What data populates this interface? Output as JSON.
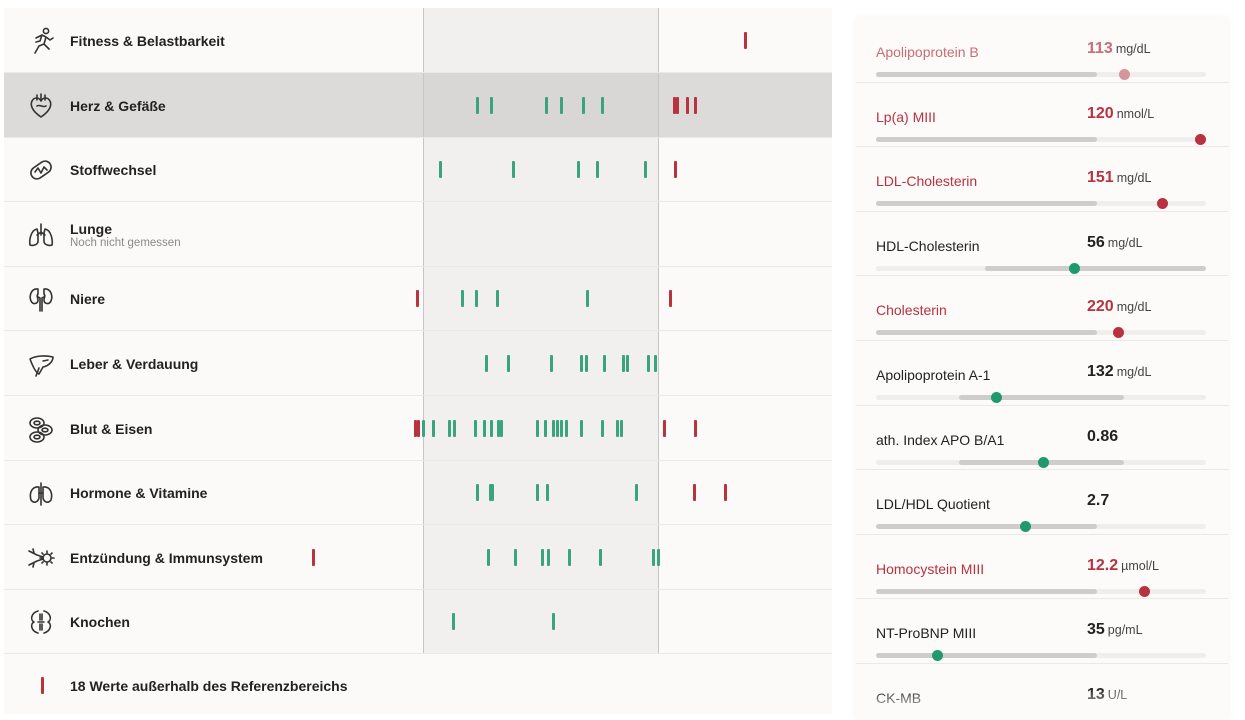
{
  "categories": [
    {
      "label": "Fitness & Belastbarkeit",
      "icon": "runner-icon",
      "marks": [
        {
          "x": 740,
          "s": "r"
        }
      ]
    },
    {
      "label": "Herz & Gefäße",
      "icon": "heart-icon",
      "selected": true,
      "marks": [
        {
          "x": 472,
          "s": "g"
        },
        {
          "x": 486,
          "s": "g"
        },
        {
          "x": 541,
          "s": "g"
        },
        {
          "x": 556,
          "s": "g"
        },
        {
          "x": 578,
          "s": "g"
        },
        {
          "x": 597,
          "s": "g"
        },
        {
          "x": 669,
          "s": "r"
        },
        {
          "x": 672,
          "s": "r"
        },
        {
          "x": 682,
          "s": "r"
        },
        {
          "x": 690,
          "s": "r"
        }
      ]
    },
    {
      "label": "Stoffwechsel",
      "icon": "mitochondria-icon",
      "marks": [
        {
          "x": 435,
          "s": "g"
        },
        {
          "x": 508,
          "s": "g"
        },
        {
          "x": 573,
          "s": "g"
        },
        {
          "x": 592,
          "s": "g"
        },
        {
          "x": 640,
          "s": "g"
        },
        {
          "x": 670,
          "s": "r"
        }
      ]
    },
    {
      "label": "Lunge",
      "icon": "lungs-icon",
      "sub": "Noch nicht gemessen",
      "marks": []
    },
    {
      "label": "Niere",
      "icon": "kidney-icon",
      "marks": [
        {
          "x": 412,
          "s": "r"
        },
        {
          "x": 457,
          "s": "g"
        },
        {
          "x": 471,
          "s": "g"
        },
        {
          "x": 492,
          "s": "g"
        },
        {
          "x": 582,
          "s": "g"
        },
        {
          "x": 665,
          "s": "r"
        }
      ]
    },
    {
      "label": "Leber & Verdauung",
      "icon": "liver-icon",
      "marks": [
        {
          "x": 481,
          "s": "g"
        },
        {
          "x": 503,
          "s": "g"
        },
        {
          "x": 546,
          "s": "g"
        },
        {
          "x": 576,
          "s": "g"
        },
        {
          "x": 581,
          "s": "g"
        },
        {
          "x": 599,
          "s": "g"
        },
        {
          "x": 618,
          "s": "g"
        },
        {
          "x": 622,
          "s": "g"
        },
        {
          "x": 643,
          "s": "g"
        },
        {
          "x": 650,
          "s": "g"
        }
      ]
    },
    {
      "label": "Blut & Eisen",
      "icon": "blood-cells-icon",
      "marks": [
        {
          "x": 410,
          "s": "r"
        },
        {
          "x": 413,
          "s": "r"
        },
        {
          "x": 418,
          "s": "g"
        },
        {
          "x": 428,
          "s": "g"
        },
        {
          "x": 444,
          "s": "g"
        },
        {
          "x": 449,
          "s": "g"
        },
        {
          "x": 470,
          "s": "g"
        },
        {
          "x": 479,
          "s": "g"
        },
        {
          "x": 486,
          "s": "g"
        },
        {
          "x": 493,
          "s": "g"
        },
        {
          "x": 496,
          "s": "g"
        },
        {
          "x": 532,
          "s": "g"
        },
        {
          "x": 540,
          "s": "g"
        },
        {
          "x": 548,
          "s": "g"
        },
        {
          "x": 552,
          "s": "g"
        },
        {
          "x": 556,
          "s": "g"
        },
        {
          "x": 561,
          "s": "g"
        },
        {
          "x": 576,
          "s": "g"
        },
        {
          "x": 597,
          "s": "g"
        },
        {
          "x": 612,
          "s": "g"
        },
        {
          "x": 616,
          "s": "g"
        },
        {
          "x": 659,
          "s": "r"
        },
        {
          "x": 690,
          "s": "r"
        }
      ]
    },
    {
      "label": "Hormone & Vitamine",
      "icon": "thyroid-icon",
      "marks": [
        {
          "x": 472,
          "s": "g"
        },
        {
          "x": 485,
          "s": "g"
        },
        {
          "x": 487,
          "s": "g"
        },
        {
          "x": 532,
          "s": "g"
        },
        {
          "x": 542,
          "s": "g"
        },
        {
          "x": 631,
          "s": "g"
        },
        {
          "x": 689,
          "s": "r"
        },
        {
          "x": 720,
          "s": "r"
        }
      ]
    },
    {
      "label": "Entzündung & Immunsystem",
      "icon": "immune-icon",
      "marks": [
        {
          "x": 308,
          "s": "r"
        },
        {
          "x": 483,
          "s": "g"
        },
        {
          "x": 510,
          "s": "g"
        },
        {
          "x": 537,
          "s": "g"
        },
        {
          "x": 543,
          "s": "g"
        },
        {
          "x": 564,
          "s": "g"
        },
        {
          "x": 595,
          "s": "g"
        },
        {
          "x": 648,
          "s": "g"
        },
        {
          "x": 653,
          "s": "g"
        }
      ]
    },
    {
      "label": "Knochen",
      "icon": "bone-icon",
      "marks": [
        {
          "x": 448,
          "s": "g"
        },
        {
          "x": 548,
          "s": "g"
        }
      ]
    }
  ],
  "footer": {
    "text": "18 Werte außerhalb des Referenzbereichs"
  },
  "markers": [
    {
      "name": "Apolipoprotein B",
      "value": "113",
      "unit": "mg/dL",
      "status": "soft",
      "level": 0.754,
      "range": [
        0,
        0.67
      ],
      "dot": "p"
    },
    {
      "name": "Lp(a) MIII",
      "value": "120",
      "unit": "nmol/L",
      "status": "high",
      "level": 0.982,
      "range": [
        0,
        0.67
      ],
      "dot": "r"
    },
    {
      "name": "LDL-Cholesterin",
      "value": "151",
      "unit": "mg/dL",
      "status": "high",
      "level": 0.867,
      "range": [
        0,
        0.67
      ],
      "dot": "r"
    },
    {
      "name": "HDL-Cholesterin",
      "value": "56",
      "unit": "mg/dL",
      "status": "normal",
      "level": 0.6,
      "range": [
        0.33,
        1.0
      ],
      "dot": "g"
    },
    {
      "name": "Cholesterin",
      "value": "220",
      "unit": "mg/dL",
      "status": "high",
      "level": 0.736,
      "range": [
        0,
        0.67
      ],
      "dot": "r"
    },
    {
      "name": "Apolipoprotein A-1",
      "value": "132",
      "unit": "mg/dL",
      "status": "normal",
      "level": 0.364,
      "range": [
        0.25,
        0.75
      ],
      "dot": "g"
    },
    {
      "name": "ath. Index APO B/A1",
      "value": "0.86",
      "unit": "",
      "status": "normal",
      "level": 0.509,
      "range": [
        0.25,
        0.75
      ],
      "dot": "g"
    },
    {
      "name": "LDL/HDL Quotient",
      "value": "2.7",
      "unit": "",
      "status": "normal",
      "level": 0.452,
      "range": [
        0,
        0.67
      ],
      "dot": "g"
    },
    {
      "name": "Homocystein MIII",
      "value": "12.2",
      "unit": "µmol/L",
      "status": "high",
      "level": 0.815,
      "range": [
        0,
        0.67
      ],
      "dot": "r"
    },
    {
      "name": "NT-ProBNP MIII",
      "value": "35",
      "unit": "pg/mL",
      "status": "normal",
      "level": 0.185,
      "range": [
        0,
        0.67
      ],
      "dot": "g"
    },
    {
      "name": "CK-MB",
      "value": "13",
      "unit": "U/L",
      "status": "normal",
      "level": null,
      "range": null,
      "dot": null
    }
  ]
}
